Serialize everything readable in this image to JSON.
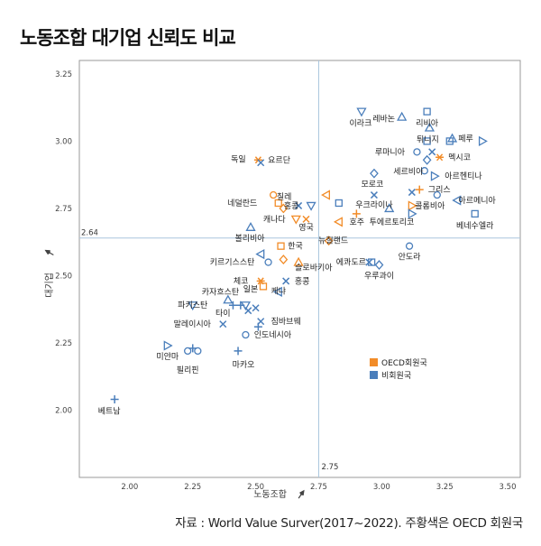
{
  "title": "노동조합 대기업 신뢰도 비교",
  "source": "자료 : World  Value  Surver(2017~2022). 주황색은 OECD 회원국",
  "chart_data": {
    "type": "scatter",
    "xlabel": "노동조합",
    "ylabel": "대기업",
    "xlim": [
      1.8,
      3.55
    ],
    "ylim": [
      1.75,
      3.3
    ],
    "xticks": [
      "2.00",
      "2.25",
      "2.50",
      "2.75",
      "3.00",
      "3.25",
      "3.50"
    ],
    "yticks": [
      "2.00",
      "2.25",
      "2.50",
      "2.75",
      "3.00",
      "3.25"
    ],
    "ref_x": 2.75,
    "ref_y": 2.64,
    "ref_x_label": "2.75",
    "ref_y_label": "2.64",
    "legend_position": "right-lower",
    "colors": {
      "oecd": "#F28C28",
      "non_oecd": "#4A7EBB",
      "axis_text": "#444444",
      "ref_line": "#A9C6DE"
    },
    "series": [
      {
        "name": "OECD회원국",
        "color": "#F28C28"
      },
      {
        "name": "비회원국",
        "color": "#4A7EBB"
      }
    ],
    "points": [
      {
        "label": "이라크",
        "x": 2.92,
        "y": 3.11,
        "oecd": false,
        "m": "tri-down",
        "ldx": -1,
        "ldy": 13
      },
      {
        "label": "레바논",
        "x": 3.08,
        "y": 3.09,
        "oecd": false,
        "m": "tri-up",
        "ldx": -20,
        "ldy": 2
      },
      {
        "label": "리비아",
        "x": 3.18,
        "y": 3.11,
        "oecd": false,
        "m": "square",
        "ldx": 0,
        "ldy": 13
      },
      {
        "label": "튀니지",
        "x": 3.19,
        "y": 3.05,
        "oecd": false,
        "m": "tri-up",
        "ldx": -2,
        "ldy": 13
      },
      {
        "label": "",
        "x": 3.18,
        "y": 3.0,
        "oecd": false,
        "m": "square"
      },
      {
        "label": "페루",
        "x": 3.28,
        "y": 3.01,
        "oecd": false,
        "m": "tri-up",
        "ldx": 15,
        "ldy": 0
      },
      {
        "label": "",
        "x": 3.27,
        "y": 3.0,
        "oecd": false,
        "m": "square"
      },
      {
        "label": "",
        "x": 3.4,
        "y": 3.0,
        "oecd": false,
        "m": "tri-right"
      },
      {
        "label": "루마니아",
        "x": 3.14,
        "y": 2.96,
        "oecd": false,
        "m": "circle",
        "ldx": -30,
        "ldy": 0
      },
      {
        "label": "",
        "x": 3.2,
        "y": 2.96,
        "oecd": false,
        "m": "x"
      },
      {
        "label": "",
        "x": 3.18,
        "y": 2.93,
        "oecd": false,
        "m": "diamond"
      },
      {
        "label": "멕시코",
        "x": 3.23,
        "y": 2.94,
        "oecd": true,
        "m": "star",
        "ldx": 22,
        "ldy": 0
      },
      {
        "label": "세르비아",
        "x": 3.17,
        "y": 2.89,
        "oecd": false,
        "m": "circle",
        "ldx": -18,
        "ldy": 1
      },
      {
        "label": "아르헨티나",
        "x": 3.21,
        "y": 2.87,
        "oecd": false,
        "m": "tri-right",
        "ldx": 32,
        "ldy": 0
      },
      {
        "label": "모로코",
        "x": 2.97,
        "y": 2.88,
        "oecd": false,
        "m": "diamond",
        "ldx": -2,
        "ldy": 12
      },
      {
        "label": "그리스",
        "x": 3.15,
        "y": 2.82,
        "oecd": true,
        "m": "plus",
        "ldx": 22,
        "ldy": 0
      },
      {
        "label": "",
        "x": 3.12,
        "y": 2.81,
        "oecd": false,
        "m": "x"
      },
      {
        "label": "우크라이나",
        "x": 2.97,
        "y": 2.8,
        "oecd": false,
        "m": "x",
        "ldx": 0,
        "ldy": 11
      },
      {
        "label": "",
        "x": 3.22,
        "y": 2.8,
        "oecd": false,
        "m": "circle"
      },
      {
        "label": "아르메니아",
        "x": 3.3,
        "y": 2.78,
        "oecd": false,
        "m": "tri-left",
        "ldx": 22,
        "ldy": 0
      },
      {
        "label": "콜롬비아",
        "x": 3.12,
        "y": 2.76,
        "oecd": true,
        "m": "tri-right",
        "ldx": 20,
        "ldy": 0
      },
      {
        "label": "",
        "x": 3.12,
        "y": 2.73,
        "oecd": false,
        "m": "tri-right"
      },
      {
        "label": "",
        "x": 3.03,
        "y": 2.75,
        "oecd": false,
        "m": "tri-up"
      },
      {
        "label": "",
        "x": 2.83,
        "y": 2.77,
        "oecd": false,
        "m": "square"
      },
      {
        "label": "",
        "x": 2.78,
        "y": 2.8,
        "oecd": true,
        "m": "tri-left"
      },
      {
        "label": "",
        "x": 2.9,
        "y": 2.73,
        "oecd": true,
        "m": "plus"
      },
      {
        "label": "베네수엘라",
        "x": 3.37,
        "y": 2.73,
        "oecd": false,
        "m": "square",
        "ldx": 0,
        "ldy": 13
      },
      {
        "label": "독일",
        "x": 2.51,
        "y": 2.93,
        "oecd": true,
        "m": "star",
        "ldx": -22,
        "ldy": -1
      },
      {
        "label": "",
        "x": 2.52,
        "y": 2.92,
        "oecd": false,
        "m": "x"
      },
      {
        "label": "요르단",
        "x": 2.55,
        "y": 2.93,
        "oecd": false,
        "m": "none",
        "ldx": 12,
        "ldy": 0
      },
      {
        "label": "칠레",
        "x": 2.57,
        "y": 2.8,
        "oecd": true,
        "m": "circle",
        "ldx": 12,
        "ldy": 2
      },
      {
        "label": "네덜란드",
        "x": 2.59,
        "y": 2.77,
        "oecd": true,
        "m": "square",
        "ldx": -40,
        "ldy": 0
      },
      {
        "label": "",
        "x": 2.61,
        "y": 2.75,
        "oecd": true,
        "m": "diamond"
      },
      {
        "label": "홍콩",
        "x": 2.67,
        "y": 2.76,
        "oecd": false,
        "m": "x",
        "ldx": -8,
        "ldy": 0
      },
      {
        "label": "",
        "x": 2.72,
        "y": 2.76,
        "oecd": false,
        "m": "tri-down"
      },
      {
        "label": "캐나다",
        "x": 2.66,
        "y": 2.71,
        "oecd": true,
        "m": "tri-down",
        "ldx": -24,
        "ldy": 0
      },
      {
        "label": "",
        "x": 2.7,
        "y": 2.71,
        "oecd": true,
        "m": "x"
      },
      {
        "label": "영국",
        "x": 2.7,
        "y": 2.68,
        "oecd": true,
        "m": "none",
        "ldx": 0,
        "ldy": 0
      },
      {
        "label": "호주",
        "x": 2.83,
        "y": 2.7,
        "oecd": true,
        "m": "tri-left",
        "ldx": 20,
        "ldy": 0
      },
      {
        "label": "볼리비아",
        "x": 2.48,
        "y": 2.68,
        "oecd": false,
        "m": "tri-up",
        "ldx": -1,
        "ldy": 12
      },
      {
        "label": "뉴질랜드",
        "x": 2.79,
        "y": 2.63,
        "oecd": true,
        "m": "diamond",
        "ldx": 5,
        "ldy": 0
      },
      {
        "label": "한국",
        "x": 2.6,
        "y": 2.61,
        "oecd": true,
        "m": "square",
        "ldx": 16,
        "ldy": 0
      },
      {
        "label": "안도라",
        "x": 3.11,
        "y": 2.61,
        "oecd": false,
        "m": "circle",
        "ldx": 0,
        "ldy": 12
      },
      {
        "label": "투에르토리코",
        "x": 3.04,
        "y": 2.7,
        "oecd": false,
        "m": "none",
        "ldx": 0,
        "ldy": 0
      },
      {
        "label": "키르기스스탄",
        "x": 2.55,
        "y": 2.55,
        "oecd": false,
        "m": "circle",
        "ldx": -40,
        "ldy": 0
      },
      {
        "label": "",
        "x": 2.52,
        "y": 2.58,
        "oecd": false,
        "m": "tri-left"
      },
      {
        "label": "",
        "x": 2.61,
        "y": 2.56,
        "oecd": true,
        "m": "diamond"
      },
      {
        "label": "",
        "x": 2.67,
        "y": 2.55,
        "oecd": true,
        "m": "tri-up"
      },
      {
        "label": "슬로바키아",
        "x": 2.73,
        "y": 2.53,
        "oecd": true,
        "m": "none",
        "ldx": 0,
        "ldy": 0
      },
      {
        "label": "에콰도르",
        "x": 2.95,
        "y": 2.55,
        "oecd": false,
        "m": "x",
        "ldx": -20,
        "ldy": 0
      },
      {
        "label": "",
        "x": 2.96,
        "y": 2.55,
        "oecd": false,
        "m": "square"
      },
      {
        "label": "",
        "x": 2.99,
        "y": 2.54,
        "oecd": false,
        "m": "diamond"
      },
      {
        "label": "우루과이",
        "x": 2.99,
        "y": 2.5,
        "oecd": false,
        "m": "none",
        "ldx": 0,
        "ldy": 0
      },
      {
        "label": "체코",
        "x": 2.52,
        "y": 2.48,
        "oecd": true,
        "m": "star",
        "ldx": -22,
        "ldy": 0
      },
      {
        "label": "",
        "x": 2.53,
        "y": 2.46,
        "oecd": true,
        "m": "square"
      },
      {
        "label": "홍콩",
        "x": 2.62,
        "y": 2.48,
        "oecd": false,
        "m": "x",
        "ldx": 18,
        "ldy": 0
      },
      {
        "label": "일본",
        "x": 2.48,
        "y": 2.45,
        "oecd": true,
        "m": "none",
        "ldx": 0,
        "ldy": 0
      },
      {
        "label": "카자흐스탄",
        "x": 2.36,
        "y": 2.44,
        "oecd": false,
        "m": "none",
        "ldx": 0,
        "ldy": 0
      },
      {
        "label": "",
        "x": 2.39,
        "y": 2.41,
        "oecd": false,
        "m": "tri-up"
      },
      {
        "label": "",
        "x": 2.41,
        "y": 2.39,
        "oecd": false,
        "m": "plus"
      },
      {
        "label": "",
        "x": 2.44,
        "y": 2.39,
        "oecd": false,
        "m": "plus"
      },
      {
        "label": "",
        "x": 2.46,
        "y": 2.39,
        "oecd": false,
        "m": "tri-down"
      },
      {
        "label": "",
        "x": 2.5,
        "y": 2.38,
        "oecd": false,
        "m": "x"
      },
      {
        "label": "",
        "x": 2.47,
        "y": 2.37,
        "oecd": false,
        "m": "x"
      },
      {
        "label": "케냐",
        "x": 2.59,
        "y": 2.44,
        "oecd": false,
        "m": "tri-left",
        "ldx": 0,
        "ldy": -1
      },
      {
        "label": "파키스탄",
        "x": 2.25,
        "y": 2.39,
        "oecd": false,
        "m": "tri-down",
        "ldx": 0,
        "ldy": 0
      },
      {
        "label": "타이",
        "x": 2.37,
        "y": 2.36,
        "oecd": false,
        "m": "none",
        "ldx": 0,
        "ldy": 0
      },
      {
        "label": "말레이시아",
        "x": 2.37,
        "y": 2.32,
        "oecd": false,
        "m": "x",
        "ldx": -34,
        "ldy": 0
      },
      {
        "label": "짐바브웨",
        "x": 2.52,
        "y": 2.33,
        "oecd": false,
        "m": "x",
        "ldx": 28,
        "ldy": 0
      },
      {
        "label": "",
        "x": 2.51,
        "y": 2.31,
        "oecd": false,
        "m": "plus"
      },
      {
        "label": "인도네시아",
        "x": 2.46,
        "y": 2.28,
        "oecd": false,
        "m": "circle",
        "ldx": 30,
        "ldy": 0
      },
      {
        "label": "미얀마",
        "x": 2.15,
        "y": 2.24,
        "oecd": false,
        "m": "tri-right",
        "ldx": 0,
        "ldy": 12
      },
      {
        "label": "",
        "x": 2.23,
        "y": 2.22,
        "oecd": false,
        "m": "circle"
      },
      {
        "label": "",
        "x": 2.25,
        "y": 2.23,
        "oecd": false,
        "m": "plus"
      },
      {
        "label": "",
        "x": 2.27,
        "y": 2.22,
        "oecd": false,
        "m": "circle"
      },
      {
        "label": "마카오",
        "x": 2.43,
        "y": 2.22,
        "oecd": false,
        "m": "plus",
        "ldx": 6,
        "ldy": 15
      },
      {
        "label": "필리핀",
        "x": 2.23,
        "y": 2.15,
        "oecd": false,
        "m": "none",
        "ldx": 0,
        "ldy": 0
      },
      {
        "label": "베트남",
        "x": 1.94,
        "y": 2.04,
        "oecd": false,
        "m": "plus",
        "ldx": -6,
        "ldy": 13
      }
    ]
  }
}
